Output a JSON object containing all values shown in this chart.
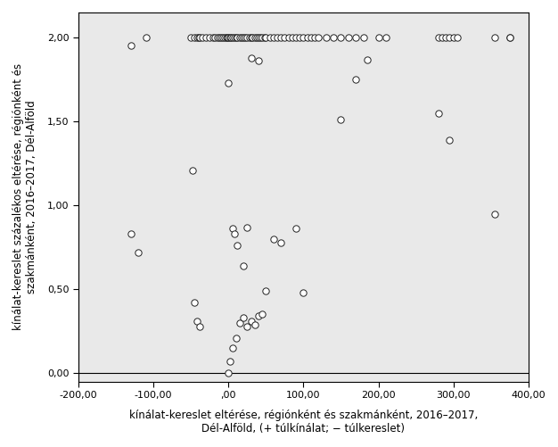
{
  "x_data": [
    -130,
    -110,
    -50,
    -45,
    -42,
    -40,
    -38,
    -35,
    -30,
    -25,
    -20,
    -18,
    -15,
    -12,
    -10,
    -8,
    -5,
    -3,
    -2,
    0,
    2,
    3,
    5,
    8,
    10,
    12,
    15,
    18,
    20,
    22,
    25,
    28,
    30,
    32,
    35,
    38,
    40,
    42,
    45,
    48,
    50,
    55,
    60,
    65,
    70,
    75,
    80,
    85,
    90,
    95,
    100,
    105,
    110,
    115,
    120,
    130,
    140,
    150,
    160,
    170,
    180,
    200,
    210,
    280,
    285,
    290,
    295,
    300,
    305,
    355,
    375,
    -130,
    -120,
    -48,
    0,
    2,
    5,
    8,
    12,
    20,
    25,
    30,
    35,
    40,
    45,
    50,
    60,
    70,
    90,
    100,
    150,
    280,
    295,
    355,
    375,
    -45,
    -42,
    -38,
    5,
    10,
    15,
    20,
    25,
    30,
    40,
    170,
    185,
    0
  ],
  "y_data": [
    1.95,
    2.0,
    2.0,
    2.0,
    2.0,
    2.0,
    2.0,
    2.0,
    2.0,
    2.0,
    2.0,
    2.0,
    2.0,
    2.0,
    2.0,
    2.0,
    2.0,
    2.0,
    2.0,
    2.0,
    2.0,
    2.0,
    2.0,
    2.0,
    2.0,
    2.0,
    2.0,
    2.0,
    2.0,
    2.0,
    2.0,
    2.0,
    2.0,
    2.0,
    2.0,
    2.0,
    2.0,
    2.0,
    2.0,
    2.0,
    2.0,
    2.0,
    2.0,
    2.0,
    2.0,
    2.0,
    2.0,
    2.0,
    2.0,
    2.0,
    2.0,
    2.0,
    2.0,
    2.0,
    2.0,
    2.0,
    2.0,
    2.0,
    2.0,
    2.0,
    2.0,
    2.0,
    2.0,
    2.0,
    2.0,
    2.0,
    2.0,
    2.0,
    2.0,
    2.0,
    2.0,
    0.83,
    0.72,
    1.21,
    1.73,
    0.07,
    0.86,
    0.83,
    0.76,
    0.64,
    0.87,
    0.31,
    0.29,
    0.34,
    0.35,
    0.49,
    0.8,
    0.78,
    0.86,
    0.48,
    1.51,
    1.55,
    1.39,
    0.95,
    2.0,
    0.42,
    0.31,
    0.28,
    0.15,
    0.21,
    0.3,
    0.33,
    0.28,
    1.88,
    1.86,
    1.75,
    1.87,
    0.0
  ],
  "xlabel": "kínálat-kereslet eltérése, régiónként és szakmánként, 2016–2017,\nDél-Alföld, (+ túlkínálat; − túlkereslet)",
  "ylabel": "kínálat-kereslet százalékos eltérése, régiónként és\nszakmánként, 2016–2017, Dél-Alföld",
  "xlim": [
    -200,
    400
  ],
  "ylim": [
    -0.05,
    2.15
  ],
  "ylim_display": [
    0.0,
    2.0
  ],
  "xticks": [
    -200,
    -100,
    0,
    100,
    200,
    300,
    400
  ],
  "yticks": [
    0.0,
    0.5,
    1.0,
    1.5,
    2.0
  ],
  "background_color": "#e9e9e9",
  "marker_facecolor": "white",
  "marker_edgecolor": "#222222",
  "marker_size": 28,
  "marker_linewidth": 0.7,
  "xlabel_fontsize": 8.5,
  "ylabel_fontsize": 8.5,
  "tick_fontsize": 8,
  "fig_width": 6.26,
  "fig_height": 5.01,
  "dpi": 100
}
